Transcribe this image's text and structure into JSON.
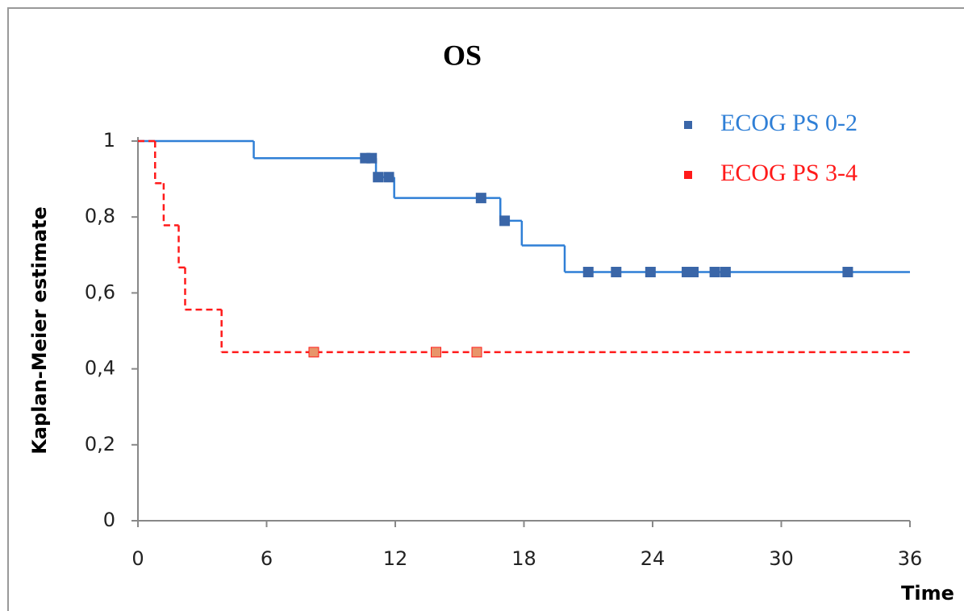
{
  "chart_data": {
    "type": "km",
    "title": "OS",
    "x_label": "Time",
    "y_label": "Kaplan-Meier estimate",
    "xlim": [
      0,
      36
    ],
    "ylim": [
      0,
      1
    ],
    "xticks": [
      0,
      6,
      12,
      18,
      24,
      30,
      36
    ],
    "yticks": [
      0,
      {
        "value": 0.2,
        "label": "0,2"
      },
      {
        "value": 0.4,
        "label": "0,4"
      },
      {
        "value": 0.6,
        "label": "0,6"
      },
      {
        "value": 0.8,
        "label": "0,8"
      },
      1
    ],
    "series": [
      {
        "name": "ECOG PS 0-2",
        "color": "#2f7fd6",
        "censor_color": "#3a66a8",
        "dash": false,
        "x": [
          0,
          5.4,
          11.1,
          11.95,
          16.9,
          17.9,
          19.9,
          36
        ],
        "values": [
          1,
          0.955,
          0.905,
          0.85,
          0.79,
          0.725,
          0.655,
          0.655
        ],
        "censored_x": [
          10.6,
          10.9,
          11.2,
          11.7,
          16,
          17.1,
          21,
          22.3,
          23.9,
          25.6,
          25.9,
          26.9,
          27.4,
          33.1
        ],
        "censored_values": [
          0.955,
          0.955,
          0.905,
          0.905,
          0.85,
          0.79,
          0.655,
          0.655,
          0.655,
          0.655,
          0.655,
          0.655,
          0.655,
          0.655
        ]
      },
      {
        "name": "ECOG PS 3-4",
        "color": "#ff1a1a",
        "censor_color": "#e8956a",
        "dash": true,
        "x": [
          0,
          0.8,
          1.2,
          1.9,
          2.2,
          3.9,
          36
        ],
        "values": [
          1,
          0.889,
          0.778,
          0.667,
          0.556,
          0.444,
          0.444
        ],
        "censored_x": [
          8.2,
          13.9,
          15.8
        ],
        "censored_values": [
          0.444,
          0.444,
          0.444
        ]
      }
    ]
  }
}
